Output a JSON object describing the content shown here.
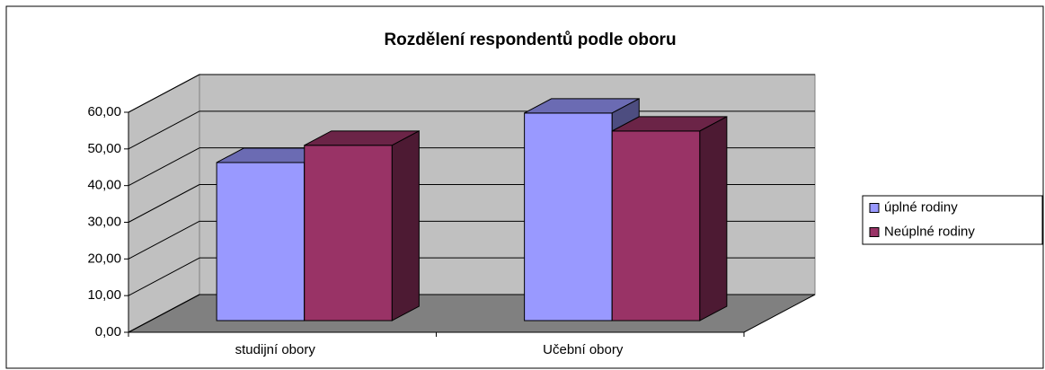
{
  "chart_data": {
    "type": "bar3d",
    "title": "Rozdělení respondentů podle oboru",
    "categories": [
      "studijní obory",
      "Učební obory"
    ],
    "series": [
      {
        "name": "úplné rodiny",
        "color": "#9999ff",
        "values": [
          43.1,
          56.6
        ]
      },
      {
        "name": "Neúplné rodiny",
        "color": "#993366",
        "values": [
          47.8,
          51.7
        ]
      }
    ],
    "ylim": [
      0,
      60
    ],
    "yticks": [
      {
        "value": 0,
        "label": "0,00"
      },
      {
        "value": 10,
        "label": "10,00"
      },
      {
        "value": 20,
        "label": "20,00"
      },
      {
        "value": 30,
        "label": "30,00"
      },
      {
        "value": 40,
        "label": "40,00"
      },
      {
        "value": 50,
        "label": "50,00"
      },
      {
        "value": 60,
        "label": "60,00"
      }
    ],
    "grid": true,
    "legend": "right"
  }
}
